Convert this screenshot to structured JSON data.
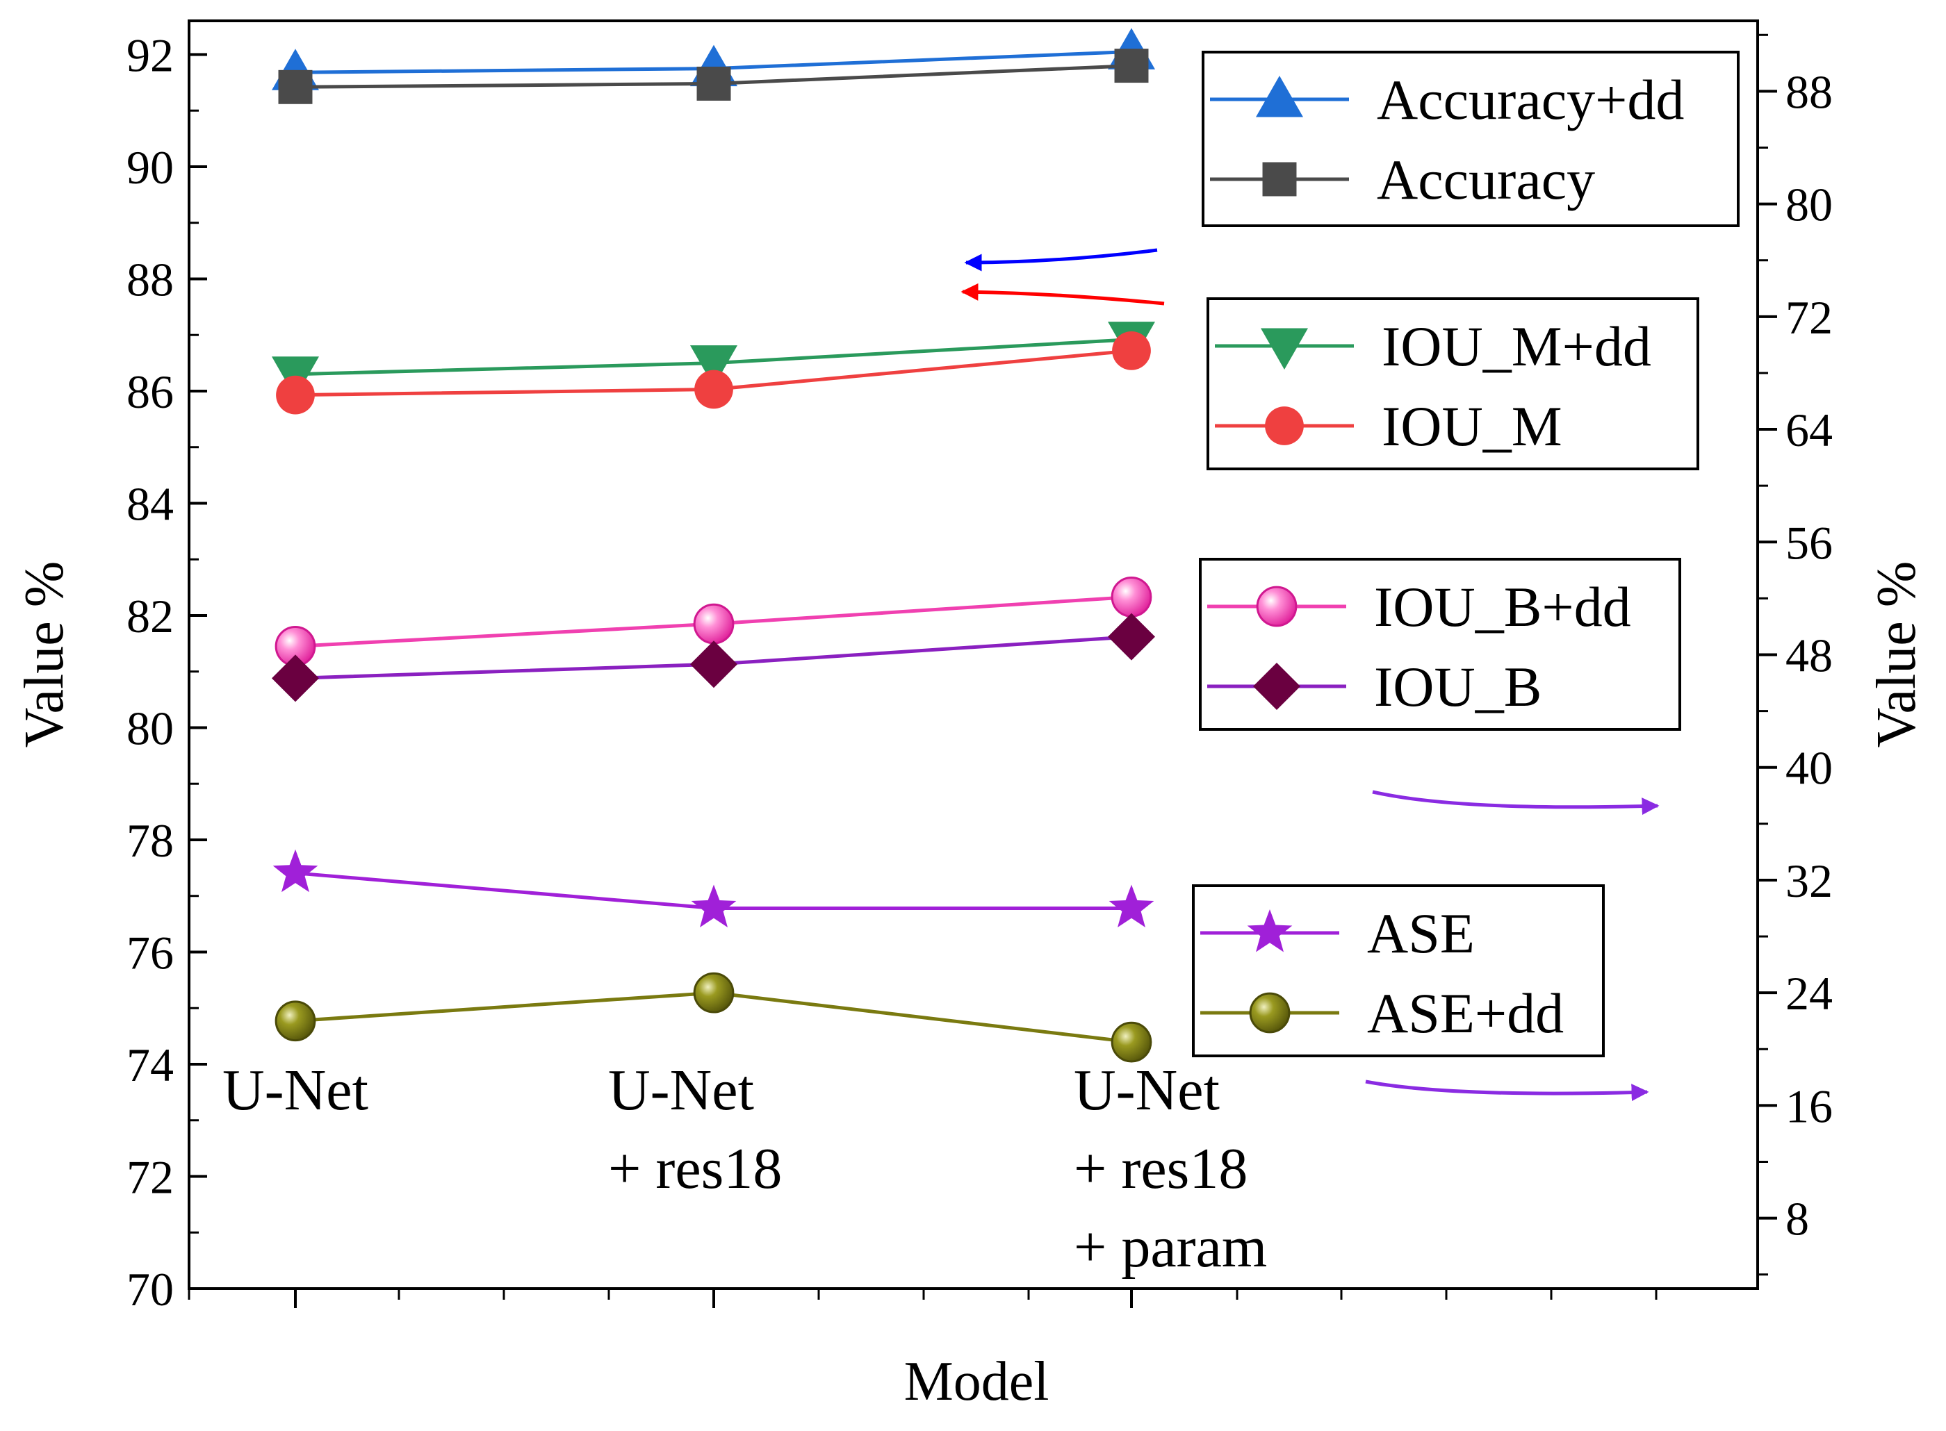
{
  "chart_data": {
    "type": "line",
    "xlabel": "Model",
    "ylabel_left": "Value %",
    "ylabel_right": "Value %",
    "ylim_left": [
      70,
      92.6
    ],
    "yticks_left": [
      "70",
      "72",
      "74",
      "76",
      "78",
      "80",
      "82",
      "84",
      "86",
      "88",
      "90",
      "92"
    ],
    "ylim_right": [
      3,
      93
    ],
    "yticks_right": [
      "8",
      "16",
      "24",
      "32",
      "40",
      "48",
      "56",
      "64",
      "72",
      "80",
      "88"
    ],
    "categories": [
      {
        "lines": [
          "U-Net"
        ]
      },
      {
        "lines": [
          "U-Net",
          "+ res18"
        ]
      },
      {
        "lines": [
          "U-Net",
          "+ res18",
          "+ param"
        ]
      }
    ],
    "series": [
      {
        "name": "Accuracy+dd",
        "axis": "left",
        "color": "#1f6fd6",
        "marker": "triangle-up",
        "values": [
          91.68,
          91.75,
          92.05
        ]
      },
      {
        "name": "Accuracy",
        "axis": "left",
        "color": "#4a4a4a",
        "marker": "square",
        "values": [
          91.42,
          91.48,
          91.8
        ]
      },
      {
        "name": "IOU_M+dd",
        "axis": "left",
        "color": "#2a9a5c",
        "marker": "triangle-down",
        "values": [
          86.3,
          86.5,
          86.92
        ]
      },
      {
        "name": "IOU_M",
        "axis": "left",
        "color": "#ef4040",
        "marker": "circle",
        "values": [
          85.93,
          86.03,
          86.72
        ]
      },
      {
        "name": "IOU_B+dd",
        "axis": "left",
        "color": "#f040b0",
        "marker": "sphere",
        "values": [
          81.45,
          81.85,
          82.33
        ]
      },
      {
        "name": "IOU_B",
        "axis": "left",
        "color": "#8a20c0",
        "marker": "diamond",
        "markerColor": "#6a0040",
        "values": [
          80.88,
          81.13,
          81.62
        ]
      },
      {
        "name": "ASE",
        "axis": "right",
        "color": "#a020d8",
        "marker": "star",
        "values": [
          32.5,
          30.0,
          30.0
        ]
      },
      {
        "name": "ASE+dd",
        "axis": "right",
        "color": "#7a7a10",
        "marker": "sphere-olive",
        "values": [
          22.0,
          24.0,
          20.5
        ]
      }
    ],
    "legend_groups": [
      [
        "Accuracy+dd",
        "Accuracy"
      ],
      [
        "IOU_M+dd",
        "IOU_M"
      ],
      [
        "IOU_B+dd",
        "IOU_B"
      ],
      [
        "ASE",
        "ASE+dd"
      ]
    ],
    "annotations": [
      {
        "kind": "arrow",
        "direction": "left",
        "color": "#0000ff",
        "points_to": "left axis"
      },
      {
        "kind": "arrow",
        "direction": "left",
        "color": "#ff0000",
        "points_to": "left axis"
      },
      {
        "kind": "arrow",
        "direction": "right",
        "color": "#8a2be2",
        "points_to": "right axis"
      },
      {
        "kind": "arrow",
        "direction": "right",
        "color": "#8a2be2",
        "points_to": "right axis"
      }
    ]
  }
}
